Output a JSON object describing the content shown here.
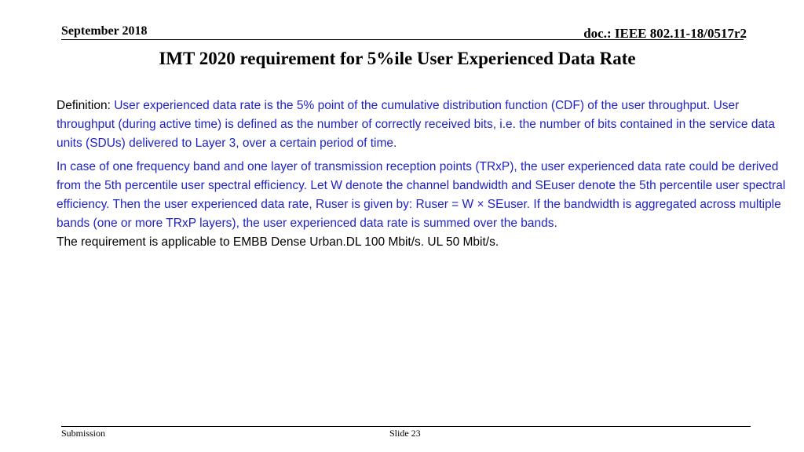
{
  "header": {
    "date": "September  2018",
    "doc_id": "doc.: IEEE 802.11-18/0517r2"
  },
  "title": "IMT 2020 requirement for 5%ile User Experienced Data Rate",
  "body": {
    "definition_label": "Definition: ",
    "definition_text": "User experienced data rate is the 5% point of the cumulative distribution function (CDF) of the user throughput. User throughput (during active time) is defined as the number of correctly received bits, i.e. the number of bits contained in the service data units (SDUs) delivered to Layer 3, over a certain period of time.",
    "derivation_text": "In case of one frequency band and one layer of transmission reception points (TRxP), the user experienced data rate could be derived from the 5th percentile user spectral efficiency. Let W denote the channel bandwidth and SEuser denote the 5th percentile user spectral efficiency. Then the user experienced data rate, Ruser is given by: Ruser = W × SEuser. If the bandwidth is aggregated across multiple bands (one or more TRxP layers), the user experienced data rate is summed over the bands.",
    "requirement_text": "The requirement is applicable to EMBB Dense Urban.DL 100 Mbit/s. UL 50 Mbit/s."
  },
  "footer": {
    "left": "Submission",
    "center": "Slide 23"
  },
  "colors": {
    "body_blue": "#1f23c7",
    "text_black": "#000000"
  }
}
